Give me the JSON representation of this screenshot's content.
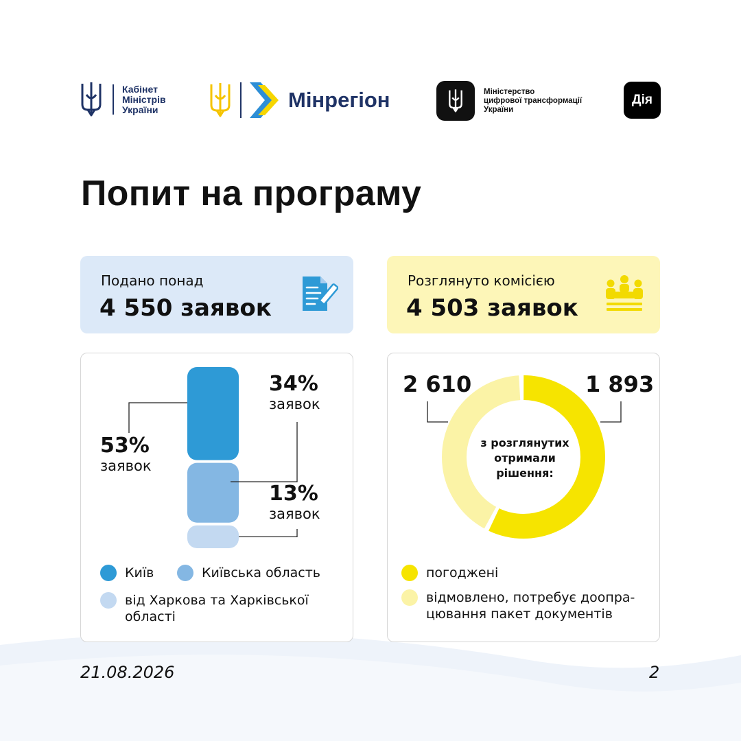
{
  "header": {
    "cabinet": {
      "lines": [
        "Кабінет",
        "Міністрів",
        "України"
      ]
    },
    "minregion": {
      "name": "Мінрегіон"
    },
    "mintsyfra": {
      "lines": [
        "Міністерство",
        "цифрової трансформації",
        "України"
      ]
    },
    "diia": {
      "label": "Дія"
    }
  },
  "title": "Попит на програму",
  "stats": {
    "submitted": {
      "label": "Подано понад",
      "value": "4 550 заявок"
    },
    "reviewed": {
      "label": "Розглянуто комісією",
      "value": "4 503 заявок"
    }
  },
  "chart_data": [
    {
      "type": "bar",
      "series": [
        {
          "name": "Київ",
          "percent": 53,
          "label": "53%",
          "unit": "заявок",
          "color": "#2e9ad6"
        },
        {
          "name": "Київська область",
          "percent": 34,
          "label": "34%",
          "unit": "заявок",
          "color": "#84b7e3"
        },
        {
          "name": "від Харкова та Харківської області",
          "percent": 13,
          "label": "13%",
          "unit": "заявок",
          "color": "#c3d9f1"
        }
      ]
    },
    {
      "type": "pie",
      "center_label": "з розглянутих отримали рішення:",
      "slices": [
        {
          "name": "погоджені",
          "value": 2610,
          "label": "2 610",
          "color": "#f6e400"
        },
        {
          "name": "відмовлено, потребує доопра-цювання пакет документів",
          "value": 1893,
          "label": "1 893",
          "color": "#fbf3a6"
        }
      ]
    }
  ],
  "legend_left": [
    "Київ",
    "Київська область",
    "від Харкова та Харківської",
    "області"
  ],
  "legend_right": [
    "погоджені",
    "відмовлено, потребує доопра-",
    "цювання пакет документів"
  ],
  "footer": {
    "date": "21.08.2026",
    "page": "2"
  }
}
